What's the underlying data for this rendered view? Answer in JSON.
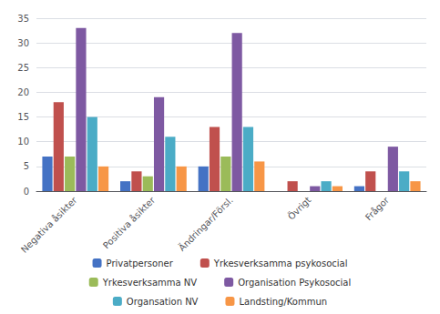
{
  "chart_data": {
    "type": "bar",
    "categories": [
      "Negativa åsikter",
      "Positiva åsikter",
      "Ändringar/Försl.",
      "Övrigt",
      "Frågor"
    ],
    "series": [
      {
        "name": "Privatpersoner",
        "color": "#4472c4",
        "values": [
          7,
          2,
          5,
          0,
          1
        ]
      },
      {
        "name": "Yrkesverksamma psykosocial",
        "color": "#c0504d",
        "values": [
          18,
          4,
          13,
          2,
          4
        ]
      },
      {
        "name": "Yrkesverksamma NV",
        "color": "#9bbb59",
        "values": [
          7,
          3,
          7,
          0,
          0
        ]
      },
      {
        "name": "Organisation Psykosocial",
        "color": "#7e59a2",
        "values": [
          33,
          19,
          32,
          1,
          9
        ]
      },
      {
        "name": "Organsation NV",
        "color": "#4bacc6",
        "values": [
          15,
          11,
          13,
          2,
          4
        ]
      },
      {
        "name": "Landsting/Kommun",
        "color": "#f79646",
        "values": [
          5,
          5,
          6,
          1,
          2
        ]
      }
    ],
    "ylim": [
      0,
      35
    ],
    "yticks": [
      0,
      5,
      10,
      15,
      20,
      25,
      30,
      35
    ],
    "grid": true,
    "legend": "bottom"
  }
}
